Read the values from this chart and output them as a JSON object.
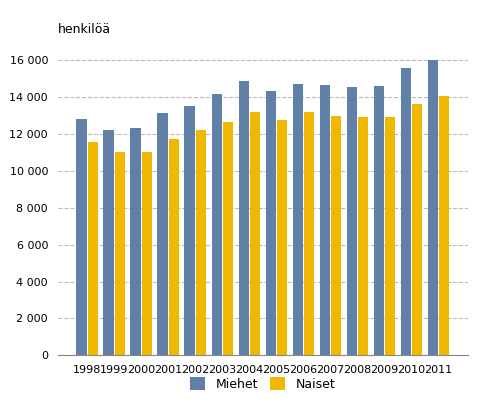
{
  "years": [
    1998,
    1999,
    2000,
    2001,
    2002,
    2003,
    2004,
    2005,
    2006,
    2007,
    2008,
    2009,
    2010,
    2011
  ],
  "miehet": [
    12800,
    12200,
    12350,
    13150,
    13500,
    14150,
    14850,
    14350,
    14700,
    14650,
    14550,
    14600,
    15600,
    16000
  ],
  "naiset": [
    11550,
    11000,
    11050,
    11750,
    12200,
    12650,
    13200,
    12750,
    13200,
    12950,
    12900,
    12900,
    13650,
    14050
  ],
  "miehet_color": "#6080a8",
  "naiset_color": "#f0b800",
  "ylabel": "henkilöä",
  "ylim": [
    0,
    17000
  ],
  "yticks": [
    0,
    2000,
    4000,
    6000,
    8000,
    10000,
    12000,
    14000,
    16000
  ],
  "legend_miehet": "Miehet",
  "legend_naiset": "Naiset",
  "background_color": "#ffffff",
  "grid_color": "#bbbbbb"
}
